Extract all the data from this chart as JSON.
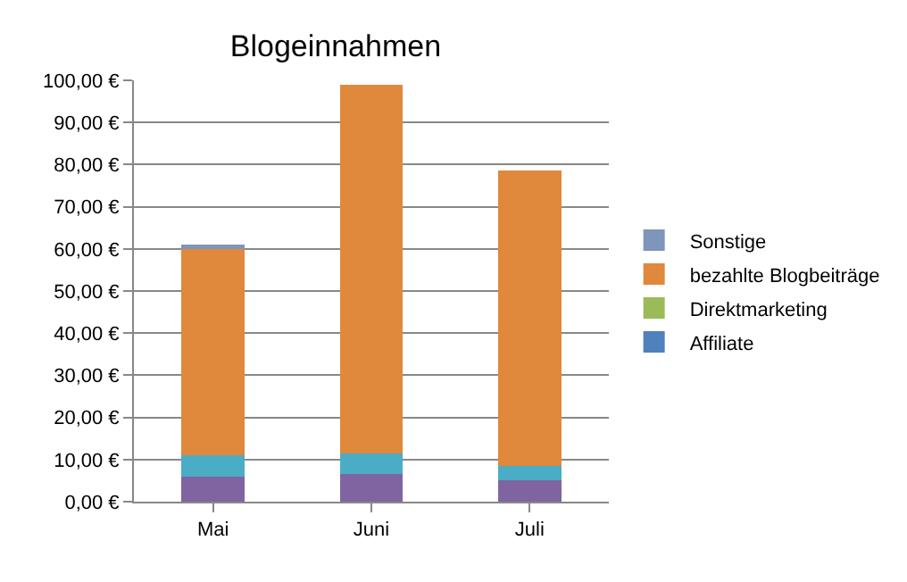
{
  "chart_data": {
    "type": "bar",
    "title": "Blogeinnahmen",
    "stacked": true,
    "categories": [
      "Mai",
      "Juni",
      "Juli"
    ],
    "series": [
      {
        "name": "Affiliate",
        "color": "#4f81bd",
        "values": [
          0,
          0,
          0
        ]
      },
      {
        "name": "Direktmarketing",
        "color": "#9bbb59",
        "values": [
          0,
          0,
          0
        ]
      },
      {
        "color": "#8064a2",
        "values": [
          6,
          6.5,
          5
        ]
      },
      {
        "color": "#4bacc6",
        "values": [
          5,
          5,
          3.5
        ]
      },
      {
        "name": "bezahlte Blogbeiträge",
        "color": "#e0883c",
        "values": [
          49,
          87.5,
          70
        ]
      },
      {
        "name": "Sonstige",
        "color": "#7f95b9",
        "values": [
          1,
          0,
          0
        ]
      }
    ],
    "ylim": [
      0,
      100
    ],
    "yticks": [
      {
        "value": 0,
        "label": "0,00 €"
      },
      {
        "value": 10,
        "label": "10,00 €"
      },
      {
        "value": 20,
        "label": "20,00 €"
      },
      {
        "value": 30,
        "label": "30,00 €"
      },
      {
        "value": 40,
        "label": "40,00 €"
      },
      {
        "value": 50,
        "label": "50,00 €"
      },
      {
        "value": 60,
        "label": "60,00 €"
      },
      {
        "value": 70,
        "label": "70,00 €"
      },
      {
        "value": 80,
        "label": "80,00 €"
      },
      {
        "value": 90,
        "label": "90,00 €"
      },
      {
        "value": 100,
        "label": "100,00 €"
      }
    ],
    "grid": true,
    "legend": "right"
  }
}
